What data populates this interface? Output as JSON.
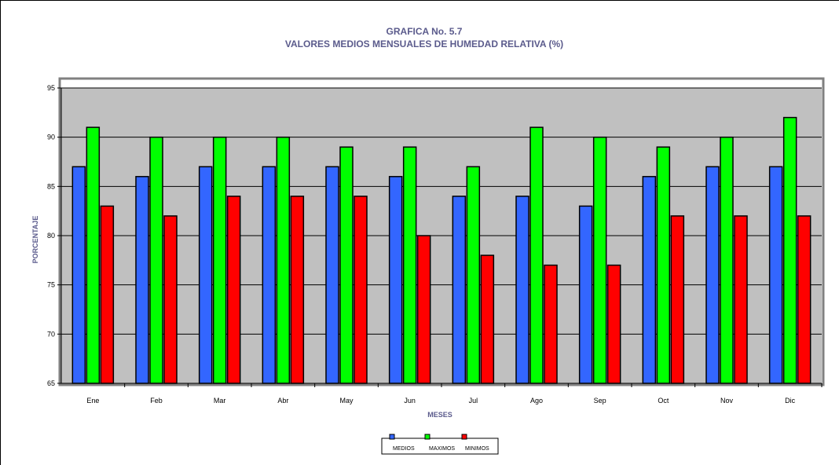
{
  "chart_data": {
    "type": "bar",
    "title": "GRAFICA No. 5.7",
    "subtitle": "VALORES MEDIOS MENSUALES DE HUMEDAD RELATIVA (%)",
    "xlabel": "MESES",
    "ylabel": "PORCENTAJE",
    "ylim": [
      65,
      95
    ],
    "yticks": [
      65,
      70,
      75,
      80,
      85,
      90,
      95
    ],
    "grid": true,
    "legend_position": "bottom",
    "categories": [
      "Ene",
      "Feb",
      "Mar",
      "Abr",
      "May",
      "Jun",
      "Jul",
      "Ago",
      "Sep",
      "Oct",
      "Nov",
      "Dic"
    ],
    "series": [
      {
        "name": "MEDIOS",
        "color": "#3366ff",
        "values": [
          87,
          86,
          87,
          87,
          87,
          86,
          84,
          84,
          83,
          86,
          87,
          87
        ]
      },
      {
        "name": "MAXIMOS",
        "color": "#00ff00",
        "values": [
          91,
          90,
          90,
          90,
          89,
          89,
          87,
          91,
          90,
          89,
          90,
          92
        ]
      },
      {
        "name": "MINIMOS",
        "color": "#ff0000",
        "values": [
          83,
          82,
          84,
          84,
          84,
          80,
          78,
          77,
          77,
          82,
          82,
          82
        ]
      }
    ],
    "plot_background": "#c0c0c0"
  }
}
